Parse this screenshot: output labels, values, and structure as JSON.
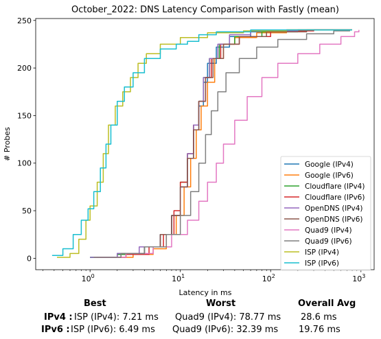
{
  "chart_data": {
    "type": "line",
    "title": "October_2022: DNS Latency Comparison with Fastly (mean)",
    "xlabel": "Latency in ms",
    "ylabel": "# Probes",
    "xscale": "log",
    "xlim": [
      0.25,
      1400
    ],
    "ylim": [
      -12,
      252
    ],
    "x_ticks": [
      {
        "v": 1,
        "label": "10^0"
      },
      {
        "v": 10,
        "label": "10^1"
      },
      {
        "v": 100,
        "label": "10^2"
      },
      {
        "v": 1000,
        "label": "10^3"
      }
    ],
    "y_ticks": [
      0,
      50,
      100,
      150,
      200,
      250
    ],
    "grid": false,
    "legend_position": "lower-right",
    "series": [
      {
        "name": "Google (IPv4)",
        "color": "#1f77b4",
        "points": [
          [
            1.0,
            1
          ],
          [
            2,
            5
          ],
          [
            4,
            12
          ],
          [
            6,
            25
          ],
          [
            8,
            45
          ],
          [
            10,
            75
          ],
          [
            12,
            105
          ],
          [
            14,
            135
          ],
          [
            16,
            160
          ],
          [
            18,
            185
          ],
          [
            20,
            205
          ],
          [
            25,
            222
          ],
          [
            35,
            233
          ],
          [
            60,
            238
          ],
          [
            150,
            240
          ],
          [
            800,
            240
          ]
        ]
      },
      {
        "name": "Google (IPv6)",
        "color": "#ff7f0e",
        "points": [
          [
            1.3,
            1
          ],
          [
            3,
            4
          ],
          [
            5,
            10
          ],
          [
            7,
            25
          ],
          [
            9,
            45
          ],
          [
            11,
            75
          ],
          [
            13,
            105
          ],
          [
            15,
            135
          ],
          [
            17,
            160
          ],
          [
            20,
            185
          ],
          [
            24,
            210
          ],
          [
            30,
            225
          ],
          [
            40,
            232
          ],
          [
            70,
            237
          ],
          [
            150,
            240
          ],
          [
            800,
            240
          ]
        ]
      },
      {
        "name": "Cloudflare (IPv4)",
        "color": "#2ca02c",
        "points": [
          [
            1.0,
            1
          ],
          [
            2,
            4
          ],
          [
            4,
            12
          ],
          [
            6,
            25
          ],
          [
            8,
            45
          ],
          [
            10,
            80
          ],
          [
            12,
            110
          ],
          [
            14,
            140
          ],
          [
            16,
            165
          ],
          [
            18,
            190
          ],
          [
            21,
            210
          ],
          [
            27,
            225
          ],
          [
            40,
            233
          ],
          [
            80,
            238
          ],
          [
            200,
            240
          ],
          [
            800,
            240
          ]
        ]
      },
      {
        "name": "Cloudflare (IPv6)",
        "color": "#d62728",
        "points": [
          [
            1.2,
            1
          ],
          [
            2.5,
            4
          ],
          [
            4.5,
            12
          ],
          [
            6.5,
            25
          ],
          [
            8.5,
            50
          ],
          [
            10,
            80
          ],
          [
            12,
            110
          ],
          [
            14,
            140
          ],
          [
            16,
            165
          ],
          [
            19,
            190
          ],
          [
            22,
            210
          ],
          [
            28,
            225
          ],
          [
            45,
            233
          ],
          [
            100,
            239
          ],
          [
            300,
            240
          ],
          [
            800,
            240
          ]
        ]
      },
      {
        "name": "OpenDNS (IPv4)",
        "color": "#9467bd",
        "points": [
          [
            1.0,
            1
          ],
          [
            2,
            5
          ],
          [
            3.5,
            12
          ],
          [
            6,
            25
          ],
          [
            8,
            45
          ],
          [
            10,
            75
          ],
          [
            12,
            110
          ],
          [
            14,
            140
          ],
          [
            16,
            165
          ],
          [
            18,
            190
          ],
          [
            21,
            210
          ],
          [
            26,
            225
          ],
          [
            35,
            235
          ],
          [
            60,
            239
          ],
          [
            200,
            240
          ],
          [
            800,
            240
          ]
        ]
      },
      {
        "name": "OpenDNS (IPv6)",
        "color": "#8c564b",
        "points": [
          [
            1.1,
            1
          ],
          [
            2.2,
            5
          ],
          [
            4,
            12
          ],
          [
            6,
            25
          ],
          [
            8,
            45
          ],
          [
            10,
            75
          ],
          [
            12,
            105
          ],
          [
            14,
            135
          ],
          [
            16,
            165
          ],
          [
            19,
            190
          ],
          [
            23,
            210
          ],
          [
            30,
            225
          ],
          [
            45,
            233
          ],
          [
            90,
            238
          ],
          [
            250,
            240
          ],
          [
            800,
            240
          ]
        ]
      },
      {
        "name": "Quad9 (IPv4)",
        "color": "#e377c2",
        "points": [
          [
            1.1,
            1
          ],
          [
            2.5,
            5
          ],
          [
            5,
            12
          ],
          [
            8,
            25
          ],
          [
            12,
            40
          ],
          [
            16,
            60
          ],
          [
            20,
            80
          ],
          [
            25,
            100
          ],
          [
            30,
            120
          ],
          [
            40,
            145
          ],
          [
            55,
            170
          ],
          [
            80,
            190
          ],
          [
            120,
            205
          ],
          [
            200,
            215
          ],
          [
            350,
            225
          ],
          [
            600,
            233
          ],
          [
            850,
            238
          ],
          [
            950,
            240
          ]
        ]
      },
      {
        "name": "Quad9 (IPv6)",
        "color": "#7f7f7f",
        "points": [
          [
            1.1,
            1
          ],
          [
            2.2,
            5
          ],
          [
            4,
            12
          ],
          [
            7,
            25
          ],
          [
            10,
            45
          ],
          [
            13,
            70
          ],
          [
            16,
            100
          ],
          [
            19,
            130
          ],
          [
            22,
            155
          ],
          [
            26,
            175
          ],
          [
            32,
            195
          ],
          [
            45,
            210
          ],
          [
            70,
            222
          ],
          [
            120,
            230
          ],
          [
            250,
            236
          ],
          [
            500,
            239
          ],
          [
            750,
            240
          ]
        ]
      },
      {
        "name": "ISP (IPv4)",
        "color": "#bcbd22",
        "points": [
          [
            0.43,
            1
          ],
          [
            0.6,
            5
          ],
          [
            0.75,
            20
          ],
          [
            0.9,
            40
          ],
          [
            1.0,
            55
          ],
          [
            1.2,
            80
          ],
          [
            1.4,
            110
          ],
          [
            1.6,
            140
          ],
          [
            1.9,
            160
          ],
          [
            2.3,
            175
          ],
          [
            2.8,
            190
          ],
          [
            3.4,
            205
          ],
          [
            4.2,
            215
          ],
          [
            6,
            225
          ],
          [
            10,
            232
          ],
          [
            20,
            237
          ],
          [
            50,
            239
          ],
          [
            150,
            240
          ],
          [
            800,
            240
          ]
        ]
      },
      {
        "name": "ISP (IPv6)",
        "color": "#17becf",
        "points": [
          [
            0.38,
            3
          ],
          [
            0.5,
            10
          ],
          [
            0.65,
            25
          ],
          [
            0.8,
            40
          ],
          [
            0.95,
            52
          ],
          [
            1.1,
            70
          ],
          [
            1.3,
            95
          ],
          [
            1.5,
            120
          ],
          [
            1.7,
            140
          ],
          [
            2.0,
            165
          ],
          [
            2.4,
            180
          ],
          [
            3.0,
            195
          ],
          [
            4.0,
            210
          ],
          [
            6.0,
            220
          ],
          [
            9,
            225
          ],
          [
            12,
            228
          ],
          [
            16,
            235
          ],
          [
            25,
            238
          ],
          [
            60,
            240
          ],
          [
            800,
            240
          ]
        ]
      }
    ]
  },
  "summary": {
    "headers": {
      "best": "Best",
      "worst": "Worst",
      "overall": "Overall Avg"
    },
    "rows": [
      {
        "label": "IPv4 :",
        "best": "ISP (IPv4): 7.21 ms",
        "worst": "Quad9 (IPv4): 78.77 ms",
        "overall": "28.6 ms"
      },
      {
        "label": "IPv6 :",
        "best": "ISP (IPv6): 6.49 ms",
        "worst": "Quad9 (IPv6): 32.39 ms",
        "overall": "19.76 ms"
      }
    ]
  }
}
